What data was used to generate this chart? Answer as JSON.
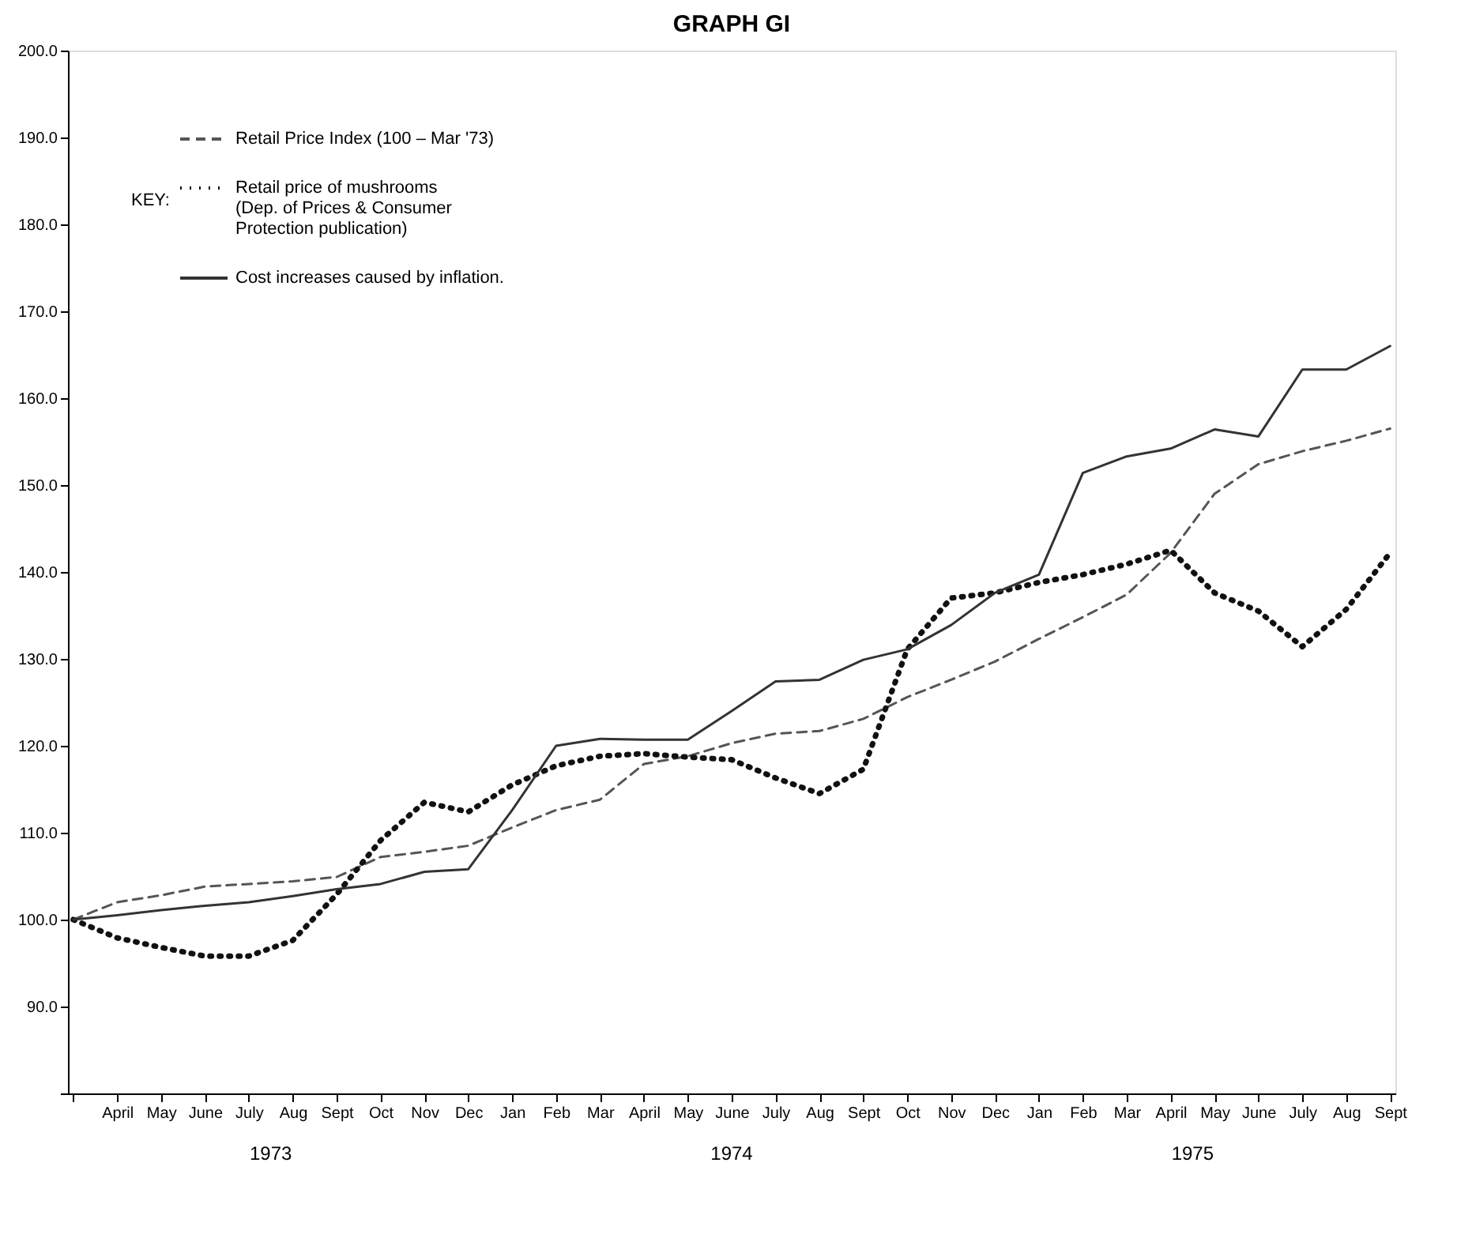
{
  "chart_data": {
    "type": "line",
    "title": "GRAPH GI",
    "categories": [
      null,
      "April",
      "May",
      "June",
      "July",
      "Aug",
      "Sept",
      "Oct",
      "Nov",
      "Dec",
      "Jan",
      "Feb",
      "Mar",
      "April",
      "May",
      "June",
      "July",
      "Aug",
      "Sept",
      "Oct",
      "Nov",
      "Dec",
      "Jan",
      "Feb",
      "Mar",
      "April",
      "May",
      "June",
      "July",
      "Aug",
      "Sept"
    ],
    "legend_title": "KEY:",
    "legend": "top left",
    "series": [
      {
        "name": "Retail Price Index (100 – Mar '73)",
        "color": "#555555",
        "line_style": "dashed",
        "values": [
          100,
          102,
          102.8,
          103.8,
          104.1,
          104.4,
          104.9,
          107.2,
          107.8,
          108.5,
          110.6,
          112.6,
          113.8,
          117.9,
          118.8,
          120.3,
          121.4,
          121.7,
          123.1,
          125.6,
          127.6,
          129.7,
          132.3,
          134.8,
          137.4,
          142.2,
          149,
          152.4,
          153.9,
          155.1,
          156.5
        ]
      },
      {
        "name": "Retail price of mushrooms\n(Dep. of Prices & Consumer\nProtection publication)",
        "color": "#111111",
        "line_style": "dotted",
        "values": [
          100,
          97.9,
          96.8,
          95.8,
          95.8,
          97.6,
          102.9,
          109.1,
          113.5,
          112.4,
          115.5,
          117.7,
          118.8,
          119.1,
          118.7,
          118.4,
          116.3,
          114.5,
          117.3,
          131.1,
          137,
          137.6,
          138.8,
          139.7,
          140.9,
          142.5,
          137.6,
          135.5,
          131.4,
          135.7,
          142.2
        ]
      },
      {
        "name": "Cost increases caused by inflation.",
        "color": "#333333",
        "line_style": "solid",
        "values": [
          100,
          100.5,
          101.1,
          101.6,
          102,
          102.7,
          103.5,
          104.1,
          105.5,
          105.8,
          112.6,
          120,
          120.8,
          120.7,
          120.7,
          124,
          127.4,
          127.6,
          129.9,
          131.1,
          133.9,
          137.6,
          139.7,
          151.4,
          153.3,
          154.2,
          156.4,
          155.6,
          163.3,
          163.3,
          166
        ]
      }
    ],
    "ylim": [
      80,
      200
    ],
    "yticks": [
      {
        "value": 80,
        "label": null
      },
      {
        "value": 90,
        "label": "90.0"
      },
      {
        "value": 100,
        "label": "100.0"
      },
      {
        "value": 110,
        "label": "110.0"
      },
      {
        "value": 120,
        "label": "120.0"
      },
      {
        "value": 130,
        "label": "130.0"
      },
      {
        "value": 140,
        "label": "140.0"
      },
      {
        "value": 150,
        "label": "150.0"
      },
      {
        "value": 160,
        "label": "160.0"
      },
      {
        "value": 170,
        "label": "170.0"
      },
      {
        "value": 180,
        "label": "180.0"
      },
      {
        "value": 190,
        "label": "190.0"
      },
      {
        "value": 200,
        "label": "200.0"
      }
    ],
    "annotations": [
      "1973",
      "1974",
      "1975"
    ]
  }
}
